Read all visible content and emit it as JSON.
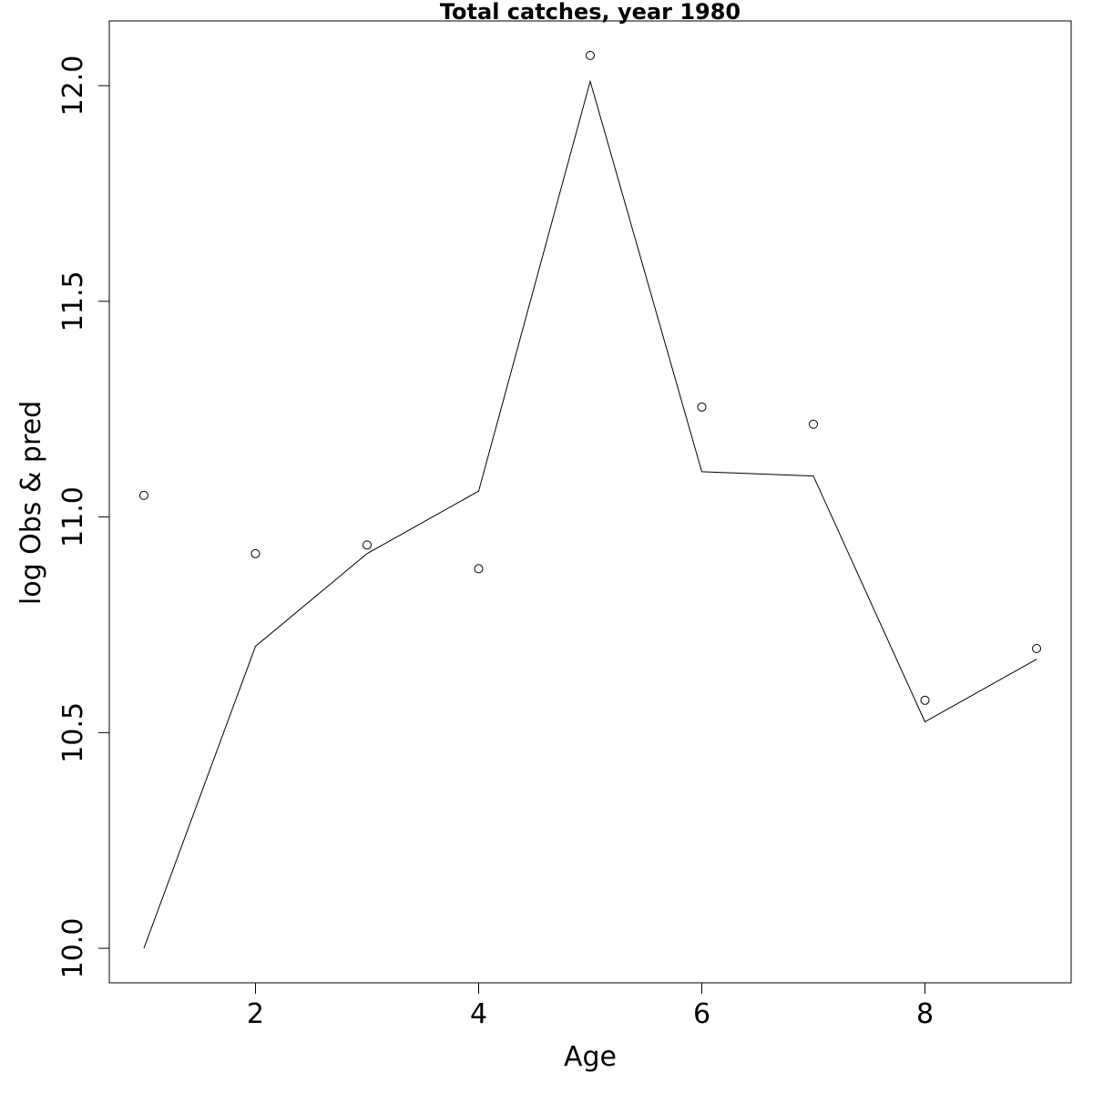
{
  "chart_data": {
    "type": "line",
    "title": "Total catches, year 1980",
    "xlabel": "Age",
    "ylabel": "log Obs & pred",
    "xlim": [
      0.69,
      9.31
    ],
    "ylim": [
      9.92,
      12.15
    ],
    "x_ticks": [
      2,
      4,
      6,
      8
    ],
    "y_ticks": [
      10.0,
      10.5,
      11.0,
      11.5,
      12.0
    ],
    "x_tick_labels": [
      "2",
      "4",
      "6",
      "8"
    ],
    "y_tick_labels": [
      "10.0",
      "10.5",
      "11.0",
      "11.5",
      "12.0"
    ],
    "grid": false,
    "series": [
      {
        "style": "points",
        "marker": "open-circle",
        "x": [
          1,
          2,
          3,
          4,
          5,
          6,
          7,
          8,
          9
        ],
        "y": [
          11.05,
          10.915,
          10.935,
          10.88,
          12.07,
          11.255,
          11.215,
          10.575,
          10.695
        ]
      },
      {
        "style": "line",
        "x": [
          1,
          2,
          3,
          4,
          5,
          6,
          7,
          8,
          9
        ],
        "y": [
          10.0,
          10.7,
          10.915,
          11.06,
          12.01,
          11.105,
          11.095,
          10.525,
          10.67
        ]
      }
    ]
  }
}
